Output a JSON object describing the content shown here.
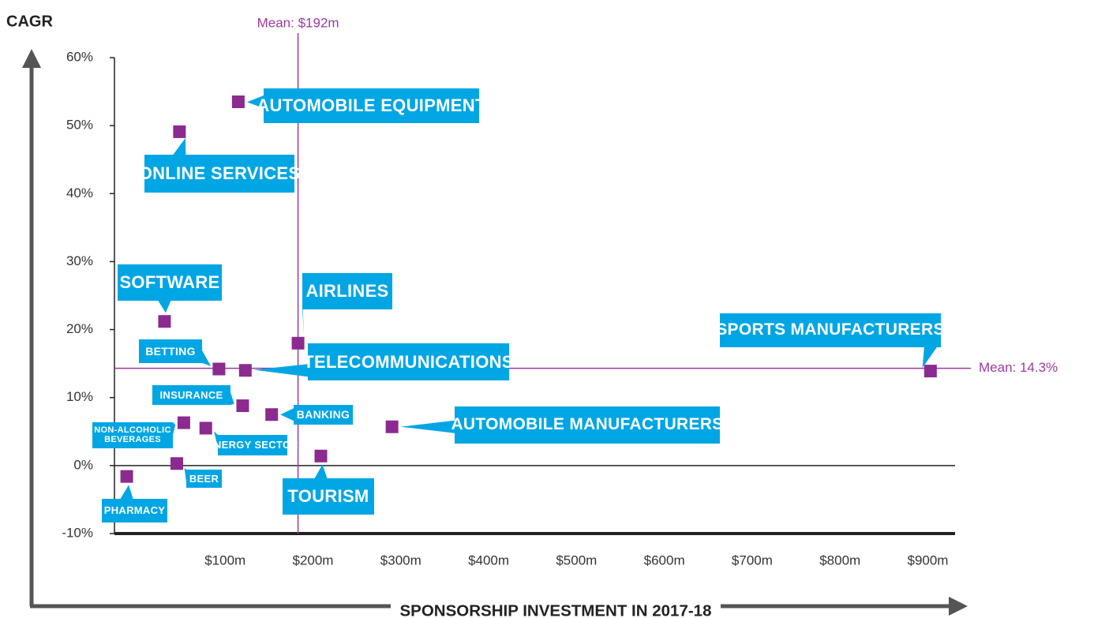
{
  "chart_data": {
    "type": "scatter",
    "y_label": "CAGR",
    "x_label": "SPONSORSHIP INVESTMENT IN 2017-18",
    "xlim": [
      -17,
      940
    ],
    "ylim": [
      -10,
      60
    ],
    "xticks": [
      {
        "value": 100,
        "label": "$100m"
      },
      {
        "value": 200,
        "label": "$200m"
      },
      {
        "value": 300,
        "label": "$300m"
      },
      {
        "value": 400,
        "label": "$400m"
      },
      {
        "value": 500,
        "label": "$500m"
      },
      {
        "value": 600,
        "label": "$600m"
      },
      {
        "value": 700,
        "label": "$700m"
      },
      {
        "value": 800,
        "label": "$800m"
      },
      {
        "value": 900,
        "label": "$900m"
      }
    ],
    "yticks": [
      {
        "value": -10,
        "label": "-10%"
      },
      {
        "value": 0,
        "label": "0%"
      },
      {
        "value": 10,
        "label": "10%"
      },
      {
        "value": 20,
        "label": "20%"
      },
      {
        "value": 30,
        "label": "30%"
      },
      {
        "value": 40,
        "label": "40%"
      },
      {
        "value": 50,
        "label": "50%"
      },
      {
        "value": 60,
        "label": "60%"
      }
    ],
    "color": "#8b2a8f",
    "label_color": "#00a6e4",
    "x_mean": {
      "value": 192,
      "label": "Mean: $192m"
    },
    "y_mean": {
      "value": 14.3,
      "label": "Mean: 14.3%"
    },
    "points": [
      {
        "label": "AUTOMOBILE EQUIPMENT",
        "x": 124,
        "y": 53.5
      },
      {
        "label": "ONLINE SERVICES",
        "x": 57,
        "y": 49.1
      },
      {
        "label": "SOFTWARE",
        "x": 40,
        "y": 21.2
      },
      {
        "label": "BETTING",
        "x": 102,
        "y": 14.2
      },
      {
        "label": "TELECOMMUNICATIONS",
        "x": 132,
        "y": 14.0
      },
      {
        "label": "AIRLINES",
        "x": 192,
        "y": 18.0
      },
      {
        "label": "SPORTS MANUFACTURERS",
        "x": 912,
        "y": 13.9
      },
      {
        "label": "INSURANCE",
        "x": 129,
        "y": 8.8
      },
      {
        "label": "BANKING",
        "x": 162,
        "y": 7.5
      },
      {
        "label": "AUTOMOBILE MANUFACTURERS",
        "x": 299,
        "y": 5.7
      },
      {
        "label": "NON-ALCOHOLIC BEVERAGES",
        "x": 62,
        "y": 6.3
      },
      {
        "label": "ENERGY SECTOR",
        "x": 87,
        "y": 5.5
      },
      {
        "label": "TOURISM",
        "x": 218,
        "y": 1.4
      },
      {
        "label": "BEER",
        "x": 54,
        "y": 0.3
      },
      {
        "label": "PHARMACY",
        "x": -3,
        "y": -1.6
      }
    ]
  }
}
